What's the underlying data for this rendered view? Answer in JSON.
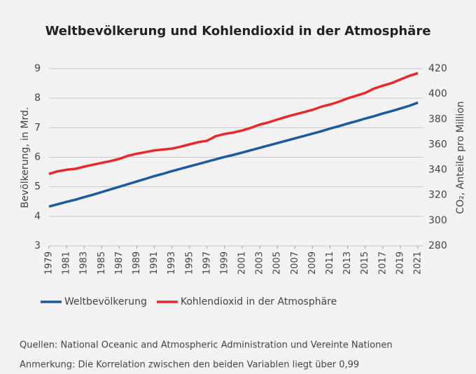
{
  "chart_data": {
    "type": "line",
    "title": "Weltbevölkerung und Kohlendioxid in der Atmosphäre",
    "y_label": "Bevölkerung, in Mrd.",
    "y2_label": "CO₂, Anteile pro Million",
    "x": [
      1979,
      1980,
      1981,
      1982,
      1983,
      1984,
      1985,
      1986,
      1987,
      1988,
      1989,
      1990,
      1991,
      1992,
      1993,
      1994,
      1995,
      1996,
      1997,
      1998,
      1999,
      2000,
      2001,
      2002,
      2003,
      2004,
      2005,
      2006,
      2007,
      2008,
      2009,
      2010,
      2011,
      2012,
      2013,
      2014,
      2015,
      2016,
      2017,
      2018,
      2019,
      2020,
      2021
    ],
    "xlim": [
      1979,
      2021
    ],
    "xticks": [
      1979,
      1981,
      1983,
      1985,
      1987,
      1989,
      1991,
      1993,
      1995,
      1997,
      1999,
      2001,
      2003,
      2005,
      2007,
      2009,
      2011,
      2013,
      2015,
      2017,
      2019,
      2021
    ],
    "ylim": [
      3,
      9
    ],
    "yticks": [
      3,
      4,
      5,
      6,
      7,
      8,
      9
    ],
    "y2lim": [
      280,
      420
    ],
    "y2ticks": [
      280,
      300,
      320,
      340,
      360,
      380,
      400,
      420
    ],
    "grid": true,
    "legend": "bottom",
    "series": [
      {
        "name": "Weltbevölkerung",
        "color": "#1a5aa0",
        "values": [
          4.33,
          4.41,
          4.49,
          4.56,
          4.65,
          4.73,
          4.82,
          4.91,
          5.0,
          5.09,
          5.18,
          5.27,
          5.36,
          5.44,
          5.53,
          5.61,
          5.69,
          5.77,
          5.85,
          5.93,
          6.01,
          6.08,
          6.16,
          6.24,
          6.32,
          6.4,
          6.48,
          6.56,
          6.64,
          6.72,
          6.8,
          6.88,
          6.97,
          7.05,
          7.14,
          7.22,
          7.31,
          7.39,
          7.48,
          7.56,
          7.65,
          7.74,
          7.85
        ]
      },
      {
        "name": "Kohlendioxid in der Atmosphäre",
        "color": "#e8282b",
        "axis": "y2",
        "values": [
          336.85,
          338.91,
          340.11,
          340.86,
          342.53,
          344.07,
          345.54,
          346.97,
          348.68,
          351.16,
          352.78,
          354.05,
          355.39,
          356.09,
          356.83,
          358.33,
          360.17,
          361.93,
          363.05,
          366.7,
          368.38,
          369.55,
          371.14,
          373.28,
          375.8,
          377.52,
          379.8,
          381.9,
          383.79,
          385.6,
          387.43,
          389.9,
          391.65,
          393.85,
          396.52,
          398.65,
          400.83,
          404.24,
          406.55,
          408.52,
          411.44,
          414.24,
          416.45
        ]
      }
    ],
    "notes": [
      "Quellen: National Oceanic and Atmospheric Administration und Vereinte Nationen",
      "Anmerkung: Die Korrelation zwischen den beiden Variablen liegt über 0,99"
    ]
  }
}
